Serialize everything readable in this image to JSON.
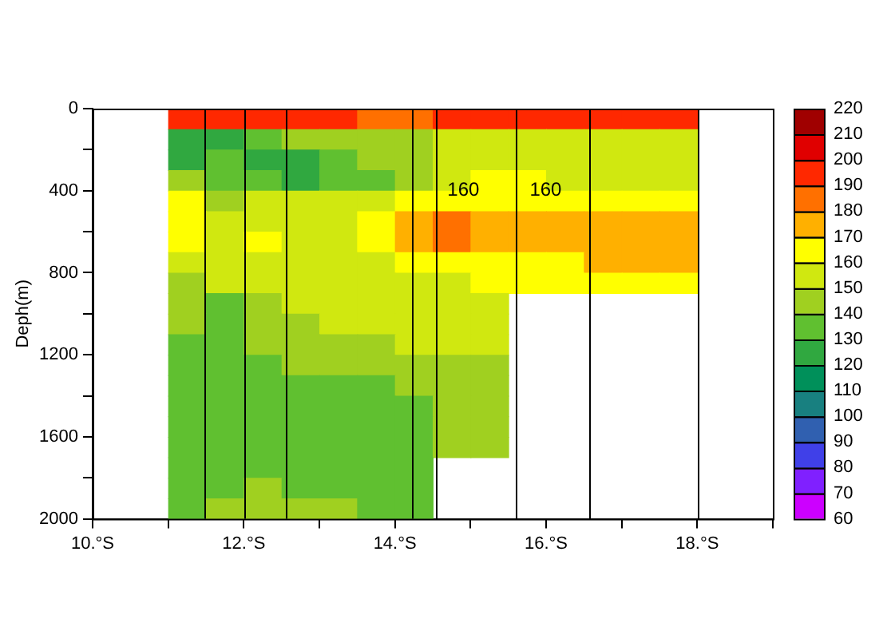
{
  "chart_data": {
    "type": "heatmap",
    "ylabel": "Deph(m)",
    "x": [
      11.25,
      11.75,
      12.25,
      12.75,
      13.25,
      13.75,
      14.25,
      14.75,
      15.25,
      15.75,
      16.25,
      16.75,
      17.25,
      17.75
    ],
    "y": [
      50,
      150,
      250,
      350,
      450,
      550,
      650,
      750,
      850,
      950,
      1050,
      1150,
      1250,
      1350,
      1450,
      1550,
      1650,
      1750,
      1850,
      1950
    ],
    "cells": [
      [
        195,
        195,
        195,
        195,
        195,
        185,
        185,
        195,
        195,
        195,
        195,
        195,
        195,
        195
      ],
      [
        125,
        125,
        135,
        145,
        145,
        145,
        145,
        155,
        155,
        155,
        155,
        155,
        155,
        155
      ],
      [
        125,
        135,
        125,
        125,
        135,
        145,
        145,
        155,
        155,
        155,
        155,
        155,
        155,
        155
      ],
      [
        145,
        135,
        135,
        125,
        135,
        135,
        145,
        155,
        165,
        165,
        155,
        155,
        155,
        155
      ],
      [
        165,
        145,
        155,
        155,
        155,
        155,
        165,
        165,
        165,
        165,
        165,
        165,
        165,
        165
      ],
      [
        165,
        155,
        155,
        155,
        155,
        165,
        175,
        185,
        175,
        175,
        175,
        175,
        175,
        175
      ],
      [
        165,
        155,
        165,
        155,
        155,
        165,
        175,
        185,
        175,
        175,
        175,
        175,
        175,
        175
      ],
      [
        155,
        155,
        155,
        155,
        155,
        155,
        165,
        165,
        165,
        165,
        165,
        175,
        175,
        175
      ],
      [
        145,
        155,
        155,
        155,
        155,
        155,
        155,
        155,
        165,
        165,
        165,
        165,
        165,
        165
      ],
      [
        145,
        135,
        145,
        155,
        155,
        155,
        155,
        155,
        155,
        null,
        null,
        null,
        null,
        null
      ],
      [
        145,
        135,
        145,
        145,
        155,
        155,
        155,
        155,
        155,
        null,
        null,
        null,
        null,
        null
      ],
      [
        135,
        135,
        145,
        145,
        145,
        145,
        155,
        155,
        155,
        null,
        null,
        null,
        null,
        null
      ],
      [
        135,
        135,
        135,
        145,
        145,
        145,
        145,
        145,
        145,
        null,
        null,
        null,
        null,
        null
      ],
      [
        135,
        135,
        135,
        135,
        135,
        135,
        145,
        145,
        145,
        null,
        null,
        null,
        null,
        null
      ],
      [
        135,
        135,
        135,
        135,
        135,
        135,
        135,
        145,
        145,
        null,
        null,
        null,
        null,
        null
      ],
      [
        135,
        135,
        135,
        135,
        135,
        135,
        135,
        145,
        145,
        null,
        null,
        null,
        null,
        null
      ],
      [
        135,
        135,
        135,
        135,
        135,
        135,
        135,
        145,
        145,
        null,
        null,
        null,
        null,
        null
      ],
      [
        135,
        135,
        135,
        135,
        135,
        135,
        135,
        null,
        null,
        null,
        null,
        null,
        null,
        null
      ],
      [
        135,
        135,
        145,
        135,
        135,
        135,
        135,
        null,
        null,
        null,
        null,
        null,
        null,
        null
      ],
      [
        135,
        145,
        145,
        145,
        145,
        135,
        135,
        null,
        null,
        null,
        null,
        null,
        null,
        null
      ]
    ],
    "clim": [
      60,
      220
    ],
    "cticks": [
      60,
      70,
      80,
      90,
      100,
      110,
      120,
      130,
      140,
      150,
      160,
      170,
      180,
      190,
      200,
      210,
      220
    ],
    "colors": [
      "#cc00ff",
      "#8020ff",
      "#4040e8",
      "#3060b0",
      "#188080",
      "#00905a",
      "#30a840",
      "#60c030",
      "#a0d020",
      "#d0e810",
      "#ffff00",
      "#ffb000",
      "#ff7000",
      "#ff2800",
      "#e00000",
      "#a00000"
    ],
    "xlim": [
      10,
      19
    ],
    "xticks": [
      {
        "value": 10,
        "label": "10.°S"
      },
      {
        "value": 11,
        "label": null
      },
      {
        "value": 12,
        "label": "12.°S"
      },
      {
        "value": 13,
        "label": null
      },
      {
        "value": 14,
        "label": "14.°S"
      },
      {
        "value": 15,
        "label": null
      },
      {
        "value": 16,
        "label": "16.°S"
      },
      {
        "value": 17,
        "label": null
      },
      {
        "value": 18,
        "label": "18.°S"
      },
      {
        "value": 19,
        "label": null
      }
    ],
    "ylim": [
      2000,
      0
    ],
    "yticks": [
      0,
      {
        "value": 200,
        "label": null
      },
      400,
      {
        "value": 600,
        "label": null
      },
      800,
      {
        "value": 1000,
        "label": null
      },
      1200,
      {
        "value": 1400,
        "label": null
      },
      1600,
      {
        "value": 1800,
        "label": null
      },
      2000
    ],
    "ref_lines": [
      {
        "axis": "x",
        "value": 11.47,
        "color": "#000000"
      },
      {
        "axis": "x",
        "value": 12.0,
        "color": "#000000"
      },
      {
        "axis": "x",
        "value": 12.55,
        "color": "#000000"
      },
      {
        "axis": "x",
        "value": 14.23,
        "color": "#000000"
      },
      {
        "axis": "x",
        "value": 14.55,
        "color": "#000000"
      },
      {
        "axis": "x",
        "value": 15.6,
        "color": "#000000"
      },
      {
        "axis": "x",
        "value": 16.57,
        "color": "#000000"
      },
      {
        "axis": "x",
        "value": 18.0,
        "color": "#000000"
      }
    ],
    "annotations": [
      "160",
      "160"
    ],
    "grid": false,
    "legend": false
  }
}
